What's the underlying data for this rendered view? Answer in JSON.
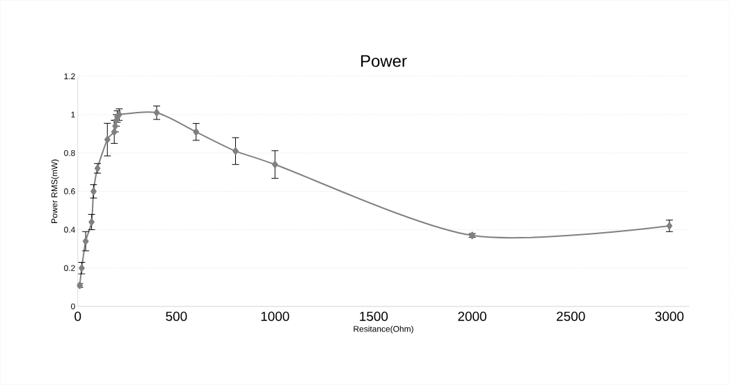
{
  "chart_data": {
    "type": "line",
    "title": "Power",
    "xlabel": "Resitance(Ohm)",
    "ylabel": "Power RMS(mW)",
    "x": [
      10,
      20,
      40,
      70,
      80,
      100,
      150,
      185,
      190,
      195,
      200,
      210,
      400,
      600,
      800,
      1000,
      2000,
      3000
    ],
    "series": [
      {
        "color": "#808080",
        "values": [
          0.11,
          0.2,
          0.34,
          0.44,
          0.6,
          0.72,
          0.87,
          0.91,
          0.94,
          0.97,
          0.99,
          1.0,
          1.01,
          0.91,
          0.81,
          0.74,
          0.37,
          0.42
        ],
        "errors": [
          0.01,
          0.03,
          0.05,
          0.04,
          0.035,
          0.025,
          0.085,
          0.06,
          0.03,
          0.03,
          0.03,
          0.03,
          0.035,
          0.044,
          0.07,
          0.072,
          0.01,
          0.03
        ]
      }
    ],
    "xlim": [
      0,
      3100
    ],
    "ylim": [
      0,
      1.2
    ],
    "xticks": [
      0,
      500,
      1000,
      1500,
      2000,
      2500,
      3000
    ],
    "yticks": [
      0,
      0.2,
      0.4,
      0.6,
      0.8,
      1,
      1.2
    ],
    "grid": "y",
    "marker": "diamond",
    "line_style": "solid"
  }
}
